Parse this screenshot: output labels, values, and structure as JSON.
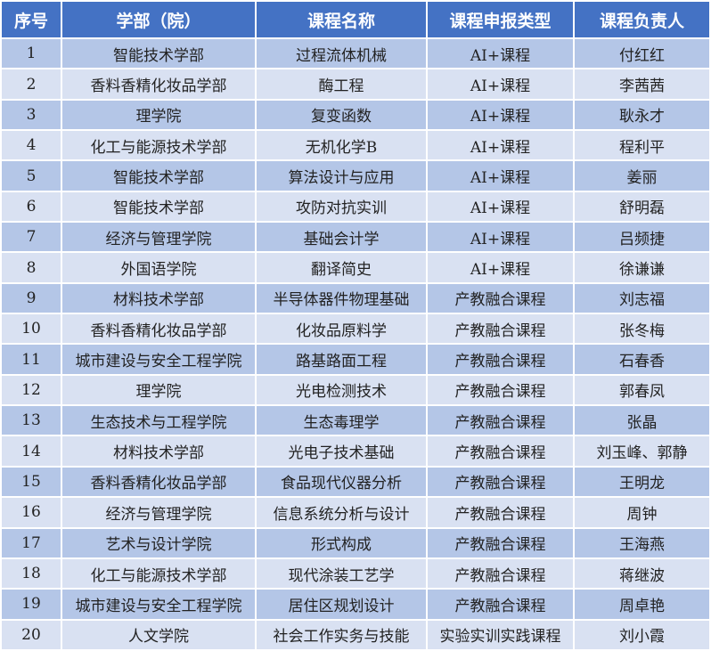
{
  "headers": [
    "序号",
    "学部（院）",
    "课程名称",
    "课程申报类型",
    "课程负责人"
  ],
  "rows": [
    [
      "1",
      "智能技术学部",
      "过程流体机械",
      "AI+课程",
      "付红红"
    ],
    [
      "2",
      "香料香精化妆品学部",
      "酶工程",
      "AI+课程",
      "李茜茜"
    ],
    [
      "3",
      "理学院",
      "复变函数",
      "AI+课程",
      "耿永才"
    ],
    [
      "4",
      "化工与能源技术学部",
      "无机化学B",
      "AI+课程",
      "程利平"
    ],
    [
      "5",
      "智能技术学部",
      "算法设计与应用",
      "AI+课程",
      "姜丽"
    ],
    [
      "6",
      "智能技术学部",
      "攻防对抗实训",
      "AI+课程",
      "舒明磊"
    ],
    [
      "7",
      "经济与管理学院",
      "基础会计学",
      "AI+课程",
      "吕频捷"
    ],
    [
      "8",
      "外国语学院",
      "翻译简史",
      "AI+课程",
      "徐谦谦"
    ],
    [
      "9",
      "材料技术学部",
      "半导体器件物理基础",
      "产教融合课程",
      "刘志福"
    ],
    [
      "10",
      "香料香精化妆品学部",
      "化妆品原料学",
      "产教融合课程",
      "张冬梅"
    ],
    [
      "11",
      "城市建设与安全工程学院",
      "路基路面工程",
      "产教融合课程",
      "石春香"
    ],
    [
      "12",
      "理学院",
      "光电检测技术",
      "产教融合课程",
      "郭春凤"
    ],
    [
      "13",
      "生态技术与工程学院",
      "生态毒理学",
      "产教融合课程",
      "张晶"
    ],
    [
      "14",
      "材料技术学部",
      "光电子技术基础",
      "产教融合课程",
      "刘玉峰、郭静"
    ],
    [
      "15",
      "香料香精化妆品学部",
      "食品现代仪器分析",
      "产教融合课程",
      "王明龙"
    ],
    [
      "16",
      "经济与管理学院",
      "信息系统分析与设计",
      "产教融合课程",
      "周钟"
    ],
    [
      "17",
      "艺术与设计学院",
      "形式构成",
      "产教融合课程",
      "王海燕"
    ],
    [
      "18",
      "化工与能源技术学部",
      "现代涂装工艺学",
      "产教融合课程",
      "蒋继波"
    ],
    [
      "19",
      "城市建设与安全工程学院",
      "居住区规划设计",
      "产教融合课程",
      "周卓艳"
    ],
    [
      "20",
      "人文学院",
      "社会工作实务与技能",
      "实验实训实践课程",
      "刘小霞"
    ]
  ],
  "colors": {
    "header": "#4472C4",
    "row_odd": "#B4C6E7",
    "row_even": "#D9E1F2"
  }
}
